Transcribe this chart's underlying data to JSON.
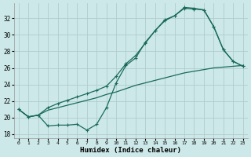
{
  "xlabel": "Humidex (Indice chaleur)",
  "bg_color": "#cce8e8",
  "grid_color": "#b0cccc",
  "line_color": "#1a6b5a",
  "xlim": [
    -0.5,
    23.5
  ],
  "ylim": [
    17.5,
    33.8
  ],
  "yticks": [
    18,
    20,
    22,
    24,
    26,
    28,
    30,
    32
  ],
  "xticks": [
    0,
    1,
    2,
    3,
    4,
    5,
    6,
    7,
    8,
    9,
    10,
    11,
    12,
    13,
    14,
    15,
    16,
    17,
    18,
    19,
    20,
    21,
    22,
    23
  ],
  "s1_x": [
    0,
    1,
    2,
    3,
    4,
    5,
    6,
    7,
    8,
    9,
    10,
    11,
    12,
    13,
    14,
    15,
    16,
    17,
    18,
    19,
    20,
    21,
    22,
    23
  ],
  "s1_y": [
    21.0,
    20.1,
    20.3,
    19.0,
    19.1,
    19.1,
    19.2,
    18.5,
    19.2,
    21.2,
    24.2,
    26.3,
    27.2,
    29.1,
    30.5,
    31.7,
    32.3,
    33.2,
    33.1,
    33.0,
    31.0,
    28.2,
    26.8,
    26.2
  ],
  "s2_x": [
    0,
    1,
    2,
    3,
    4,
    5,
    6,
    7,
    8,
    9,
    10,
    11,
    12,
    13,
    14,
    15,
    16,
    17,
    18,
    19,
    20,
    21,
    22,
    23
  ],
  "s2_y": [
    21.0,
    20.1,
    20.3,
    20.9,
    21.2,
    21.5,
    21.8,
    22.1,
    22.4,
    22.8,
    23.1,
    23.5,
    23.9,
    24.2,
    24.5,
    24.8,
    25.1,
    25.4,
    25.6,
    25.8,
    26.0,
    26.1,
    26.2,
    26.3
  ],
  "s3_x": [
    0,
    1,
    2,
    3,
    4,
    5,
    6,
    7,
    8,
    9,
    10,
    11,
    12,
    13,
    14,
    15,
    16,
    17,
    18,
    19,
    20,
    21,
    22,
    23
  ],
  "s3_y": [
    21.0,
    20.1,
    20.3,
    21.2,
    21.7,
    22.1,
    22.5,
    22.9,
    23.3,
    23.8,
    25.0,
    26.5,
    27.5,
    29.0,
    30.5,
    31.8,
    32.3,
    33.3,
    33.2,
    33.0,
    31.0,
    28.2,
    26.8,
    26.2
  ]
}
